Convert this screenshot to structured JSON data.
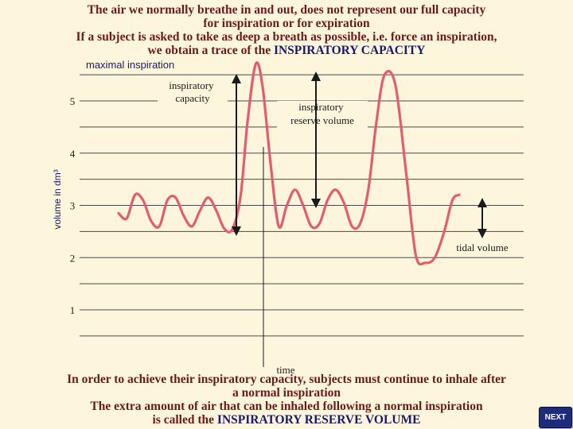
{
  "header": {
    "line1": "The air we normally breathe in and out, does not represent our full capacity",
    "line2": "for inspiration or for expiration",
    "line3": "If a subject is asked to take as deep a breath as possible, i.e. force an inspiration,",
    "line4_prefix": "we obtain a trace of the ",
    "line4_caps": "INSPIRATORY CAPACITY"
  },
  "chart_data": {
    "type": "line",
    "title": "",
    "ylabel": "volume in dm³",
    "xlabel": "time",
    "ylim": [
      0.5,
      5.5
    ],
    "yticks": [
      1,
      2,
      3,
      4,
      5
    ],
    "grid": true,
    "annotations": {
      "maximal_inspiration": "maximal inspiration",
      "inspiratory_capacity": "inspiratory capacity",
      "inspiratory_reserve_volume": "inspiratory reserve volume",
      "tidal_volume": "tidal volume"
    },
    "series": [
      {
        "x": [
          0.0,
          0.3,
          0.6,
          0.9,
          1.2,
          1.5,
          1.8,
          2.1,
          2.4,
          2.7,
          3.0,
          3.3,
          3.6,
          3.9,
          4.2,
          4.5,
          4.75,
          5.05,
          5.3,
          5.6,
          5.9,
          6.2,
          6.5,
          6.8,
          7.1,
          7.4,
          7.7,
          8.0,
          8.3,
          8.6,
          8.9,
          9.2,
          9.5,
          9.8,
          10.2,
          10.6,
          10.95,
          11.3,
          11.65,
          12.0,
          12.3,
          12.55
        ],
        "y": [
          2.85,
          2.75,
          3.2,
          3.1,
          2.7,
          2.6,
          3.1,
          3.15,
          2.8,
          2.6,
          2.9,
          3.15,
          2.9,
          2.55,
          2.55,
          3.2,
          4.6,
          5.7,
          5.3,
          3.8,
          2.6,
          3.0,
          3.3,
          3.0,
          2.6,
          2.65,
          3.1,
          3.3,
          3.05,
          2.6,
          2.65,
          3.3,
          4.6,
          5.5,
          5.3,
          3.6,
          2.05,
          1.9,
          2.0,
          2.5,
          3.1,
          3.2
        ]
      }
    ]
  },
  "nav": {
    "next_label": "NEXT"
  },
  "footer": {
    "line1": "In order to achieve their inspiratory capacity, subjects must continue to inhale after",
    "line2": "a normal inspiration",
    "line3": "The extra amount of air that can be inhaled following a normal inspiration",
    "line4_prefix": "is called the ",
    "line4_caps": "INSPIRATORY RESERVE VOLUME"
  },
  "colors": {
    "background": "#fdf6dc",
    "trace": "#e35d6e",
    "heading_text": "#6b1a1a",
    "caps_text": "#1a1a6b",
    "label_box": "#fdf6dc",
    "next_button": "#1d2b7a"
  }
}
